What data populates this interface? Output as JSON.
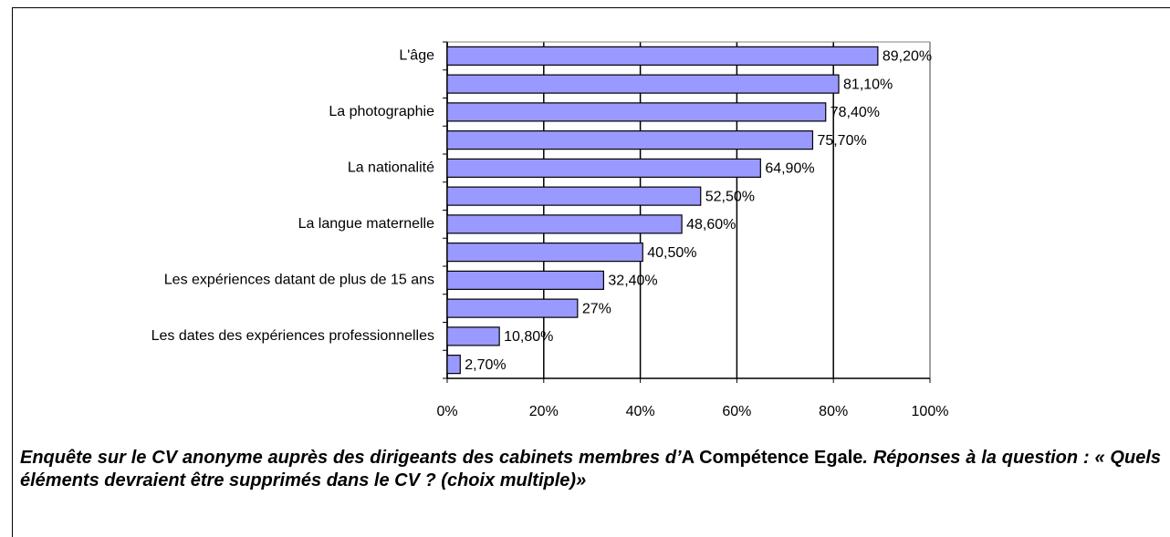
{
  "chart_data": {
    "type": "barh",
    "categories": [
      "L'âge",
      null,
      "La photographie",
      null,
      "La nationalité",
      null,
      "La langue maternelle",
      null,
      "Les expériences datant de plus de 15 ans",
      null,
      "Les dates des expériences professionnelles",
      null
    ],
    "values": [
      89.2,
      81.1,
      78.4,
      75.7,
      64.9,
      52.5,
      48.6,
      40.5,
      32.4,
      27,
      10.8,
      2.7
    ],
    "value_labels": [
      "89,20%",
      "81,10%",
      "78,40%",
      "75,70%",
      "64,90%",
      "52,50%",
      "48,60%",
      "40,50%",
      "32,40%",
      "27%",
      "10,80%",
      "2,70%"
    ],
    "color": "#9999ff",
    "xlim": [
      0,
      100
    ],
    "xticks": [
      {
        "value": 0,
        "label": "0%"
      },
      {
        "value": 20,
        "label": "20%"
      },
      {
        "value": 40,
        "label": "40%"
      },
      {
        "value": 60,
        "label": "60%"
      },
      {
        "value": 80,
        "label": "80%"
      },
      {
        "value": 100,
        "label": "100%"
      }
    ],
    "grid": true,
    "caption": [
      "Enquête sur le CV anonyme auprès des dirigeants des cabinets membres d’",
      "A Compétence Egale",
      ". Réponses à la question : « Quels éléments devraient être supprimés dans le CV ? (choix multiple)»"
    ]
  }
}
